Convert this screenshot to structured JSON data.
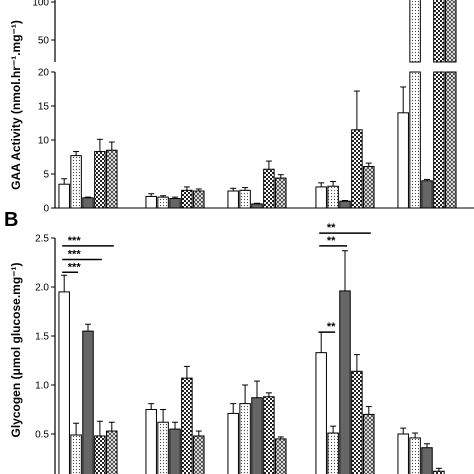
{
  "chart_data": [
    {
      "panel": "A",
      "type": "bar",
      "ylabel": "GAA Activity (nmol.hr⁻¹.mg⁻¹)",
      "axis_break": true,
      "upper_ticks": [
        "50",
        "100"
      ],
      "lower_ticks": [
        "0",
        "5",
        "10",
        "15",
        "20"
      ],
      "ylim_lower": [
        0,
        20
      ],
      "ylim_upper": [
        20,
        100
      ],
      "patterns": [
        "open",
        "dotted",
        "dark",
        "check",
        "cross"
      ],
      "groups": [
        {
          "values": [
            3.5,
            7.7,
            1.5,
            8.3,
            8.5
          ],
          "errors": [
            0.8,
            0.6,
            0.1,
            1.8,
            1.2
          ]
        },
        {
          "values": [
            1.7,
            1.6,
            1.4,
            2.6,
            2.5
          ],
          "errors": [
            0.4,
            0.2,
            0.2,
            0.5,
            0.3
          ]
        },
        {
          "values": [
            2.5,
            2.6,
            0.6,
            5.7,
            4.4
          ],
          "errors": [
            0.4,
            0.4,
            0.1,
            1.2,
            0.5
          ]
        },
        {
          "values": [
            3.1,
            3.2,
            1.0,
            11.5,
            6.1
          ],
          "errors": [
            0.6,
            0.7,
            0.1,
            5.7,
            0.5
          ]
        },
        {
          "values": [
            14.0,
            105,
            4.0,
            105,
            105
          ],
          "errors": [
            3.8,
            0,
            0.2,
            0,
            0
          ]
        }
      ]
    },
    {
      "panel": "B",
      "type": "bar",
      "ylabel": "Glycogen (μmol glucose.mg⁻¹)",
      "ylim": [
        0,
        2.5
      ],
      "ticks": [
        "0.5",
        "1.0",
        "1.5",
        "2.0",
        "2.5"
      ],
      "patterns": [
        "open",
        "dotted",
        "dark",
        "check",
        "cross"
      ],
      "groups": [
        {
          "values": [
            1.95,
            0.49,
            1.55,
            0.48,
            0.53
          ],
          "errors": [
            0.17,
            0.12,
            0.07,
            0.15,
            0.09
          ]
        },
        {
          "values": [
            0.75,
            0.62,
            0.55,
            1.07,
            0.48
          ],
          "errors": [
            0.06,
            0.13,
            0.07,
            0.12,
            0.05
          ]
        },
        {
          "values": [
            0.71,
            0.81,
            0.87,
            0.88,
            0.45
          ],
          "errors": [
            0.1,
            0.19,
            0.17,
            0.04,
            0.02
          ]
        },
        {
          "values": [
            1.33,
            0.51,
            1.96,
            1.14,
            0.7
          ],
          "errors": [
            0.21,
            0.07,
            0.41,
            0.17,
            0.08
          ]
        },
        {
          "values": [
            0.5,
            0.46,
            0.36,
            0.12,
            0.03
          ],
          "errors": [
            0.06,
            0.05,
            0.04,
            0.03,
            0.02
          ]
        }
      ],
      "significance": [
        {
          "label": "***",
          "group": 0,
          "from": 0,
          "to": 1,
          "y": 2.15
        },
        {
          "label": "***",
          "group": 0,
          "from": 0,
          "to": 3,
          "y": 2.28
        },
        {
          "label": "***",
          "group": 0,
          "from": 0,
          "to": 4,
          "y": 2.42
        },
        {
          "label": "**",
          "group": 3,
          "from": 0,
          "to": 1,
          "y": 1.54
        },
        {
          "label": "**",
          "group": 3,
          "from": 0,
          "to": 2,
          "y": 2.42
        },
        {
          "label": "**",
          "group": 3,
          "from": 0,
          "to": 4,
          "y": 2.55
        }
      ]
    }
  ]
}
